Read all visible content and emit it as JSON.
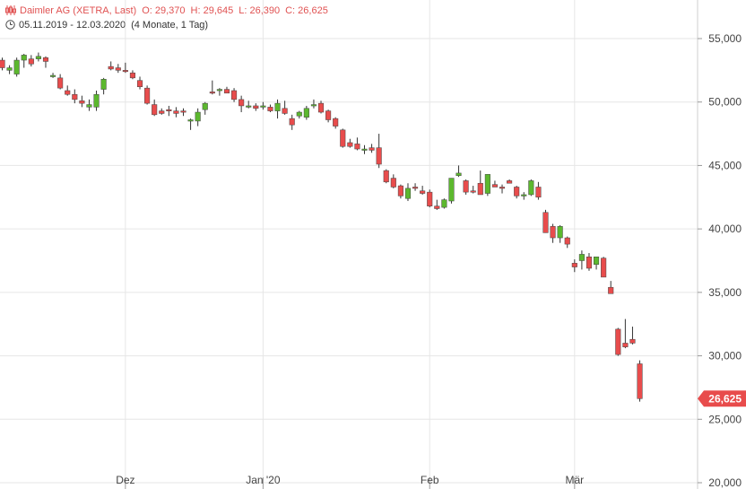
{
  "header": {
    "instrument": "Daimler AG (XETRA, Last)",
    "open": "O: 29,370",
    "high": "H: 29,645",
    "low": "L: 26,390",
    "close": "C: 26,625",
    "date_range": "05.11.2019 - 12.03.2020",
    "period": "(4 Monate, 1 Tag)",
    "icon_left": "candlestick-icon",
    "icon_clock": "clock-icon"
  },
  "colors": {
    "up": "#5cb82e",
    "down": "#e84c4c",
    "grid": "#e6e6e6",
    "label_bg": "#e84c4c"
  },
  "chart_data": {
    "type": "candlestick",
    "title": "Daimler AG (XETRA, Last)",
    "y_axis": {
      "position": "right",
      "ylim": [
        20000,
        58000
      ],
      "ticks": [
        20000,
        25000,
        30000,
        35000,
        40000,
        45000,
        50000,
        55000
      ],
      "tick_labels": [
        "20,000",
        "25,000",
        "30,000",
        "35,000",
        "40,000",
        "45,000",
        "50,000",
        "55,000"
      ]
    },
    "x_axis": {
      "tick_labels": [
        "Dez",
        "Jan '20",
        "Feb",
        "Mär"
      ],
      "tick_index": [
        17,
        36,
        59,
        79
      ]
    },
    "grid": true,
    "last_value_label": "26,625",
    "last_value": 26625,
    "candles": [
      [
        53300,
        53500,
        52500,
        52700
      ],
      [
        52500,
        52900,
        52200,
        52700
      ],
      [
        52200,
        53500,
        52000,
        53300
      ],
      [
        53300,
        53800,
        52700,
        53700
      ],
      [
        53400,
        53700,
        52800,
        53000
      ],
      [
        53400,
        53900,
        53200,
        53600
      ],
      [
        53500,
        53600,
        52700,
        53200
      ],
      [
        52000,
        52300,
        51900,
        52100
      ],
      [
        51900,
        52200,
        51000,
        51100
      ],
      [
        50900,
        51300,
        50500,
        50600
      ],
      [
        50600,
        51000,
        49900,
        50200
      ],
      [
        50100,
        50500,
        49600,
        49900
      ],
      [
        49600,
        50200,
        49300,
        49800
      ],
      [
        49600,
        50900,
        49300,
        50600
      ],
      [
        51000,
        51900,
        50600,
        51800
      ],
      [
        52800,
        53200,
        52500,
        52600
      ],
      [
        52700,
        53000,
        52300,
        52500
      ],
      [
        52500,
        53100,
        52300,
        52400
      ],
      [
        52300,
        52500,
        51800,
        51900
      ],
      [
        51700,
        52000,
        51000,
        51200
      ],
      [
        51100,
        51300,
        49800,
        49900
      ],
      [
        49800,
        50200,
        48900,
        49000
      ],
      [
        49300,
        49500,
        49000,
        49100
      ],
      [
        49400,
        49700,
        48900,
        49300
      ],
      [
        49300,
        49600,
        48800,
        49100
      ],
      [
        49300,
        49500,
        48900,
        49200
      ],
      [
        48500,
        48700,
        47800,
        48600
      ],
      [
        48500,
        49500,
        48100,
        49200
      ],
      [
        49400,
        50000,
        49000,
        49900
      ],
      [
        50800,
        51700,
        50600,
        50700
      ],
      [
        50900,
        51100,
        50500,
        51000
      ],
      [
        51000,
        51200,
        50700,
        50700
      ],
      [
        50900,
        51100,
        50000,
        50200
      ],
      [
        50200,
        50500,
        49200,
        49700
      ],
      [
        49700,
        50100,
        49500,
        49700
      ],
      [
        49700,
        49900,
        49300,
        49500
      ],
      [
        49700,
        50000,
        49400,
        49700
      ],
      [
        49600,
        49800,
        49200,
        49300
      ],
      [
        49300,
        50200,
        48700,
        49900
      ],
      [
        49500,
        50100,
        49000,
        49100
      ],
      [
        48700,
        49000,
        47800,
        48200
      ],
      [
        48900,
        49300,
        48700,
        49200
      ],
      [
        48800,
        49700,
        48600,
        49500
      ],
      [
        49700,
        50200,
        49500,
        49800
      ],
      [
        49900,
        50100,
        49100,
        49200
      ],
      [
        49300,
        49400,
        48400,
        48600
      ],
      [
        48700,
        48800,
        47900,
        48100
      ],
      [
        47800,
        47900,
        46400,
        46500
      ],
      [
        46800,
        47100,
        46400,
        46500
      ],
      [
        46700,
        47200,
        46200,
        46300
      ],
      [
        46200,
        46600,
        45900,
        46300
      ],
      [
        46400,
        46700,
        46000,
        46200
      ],
      [
        46400,
        47500,
        44800,
        45100
      ],
      [
        44600,
        44700,
        43600,
        43700
      ],
      [
        44000,
        44300,
        43200,
        43300
      ],
      [
        43400,
        43500,
        42400,
        42600
      ],
      [
        42400,
        43600,
        42200,
        43200
      ],
      [
        43300,
        43600,
        43000,
        43200
      ],
      [
        43000,
        43400,
        42700,
        42800
      ],
      [
        42900,
        43100,
        41700,
        41800
      ],
      [
        41800,
        42300,
        41500,
        41600
      ],
      [
        41700,
        42400,
        41600,
        42300
      ],
      [
        42200,
        44000,
        42000,
        44000
      ],
      [
        44200,
        45000,
        44100,
        44400
      ],
      [
        43800,
        43900,
        42700,
        42900
      ],
      [
        43000,
        43400,
        42800,
        42900
      ],
      [
        43600,
        44600,
        42700,
        42700
      ],
      [
        42800,
        44300,
        42600,
        44300
      ],
      [
        43500,
        43800,
        43300,
        43300
      ],
      [
        43300,
        43500,
        42800,
        43200
      ],
      [
        43800,
        43900,
        43600,
        43600
      ],
      [
        43300,
        43400,
        42400,
        42600
      ],
      [
        42600,
        42900,
        42300,
        42700
      ],
      [
        42700,
        43900,
        42600,
        43800
      ],
      [
        43300,
        43700,
        42300,
        42500
      ],
      [
        41300,
        41500,
        39700,
        39700
      ],
      [
        40200,
        40400,
        38900,
        39300
      ],
      [
        39300,
        40300,
        38900,
        40200
      ],
      [
        39300,
        39400,
        38500,
        38800
      ],
      [
        37300,
        37600,
        36600,
        37000
      ],
      [
        37500,
        38300,
        36800,
        38000
      ],
      [
        37800,
        38100,
        36700,
        36900
      ],
      [
        37200,
        37800,
        36800,
        37800
      ],
      [
        37700,
        37800,
        36200,
        36200
      ],
      [
        35400,
        35900,
        35100,
        34900
      ],
      [
        32100,
        32200,
        30000,
        30100
      ],
      [
        31000,
        32900,
        30600,
        30700
      ],
      [
        31300,
        32300,
        30900,
        31000
      ],
      [
        29370,
        29645,
        26390,
        26625
      ]
    ]
  }
}
